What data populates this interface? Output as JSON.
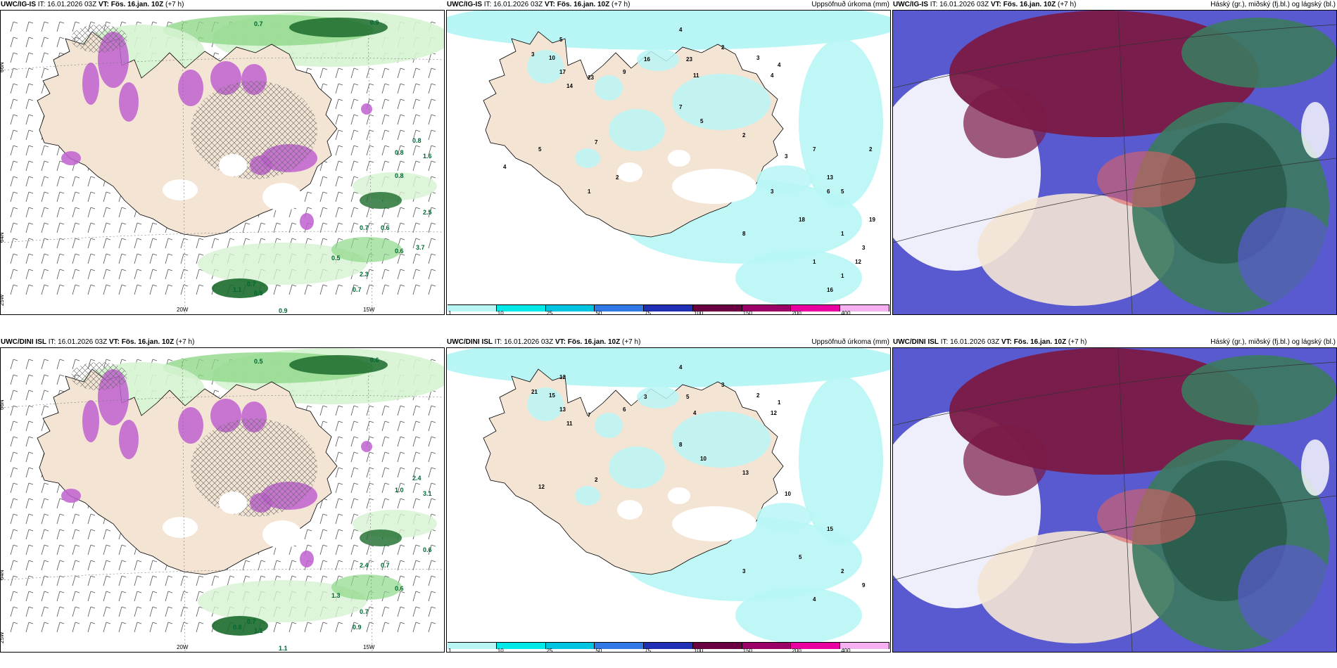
{
  "panels": [
    {
      "model": "UWC/IG-IS",
      "it_label": "IT:",
      "it": "16.01.2026 03Z",
      "vt_label": "VT:",
      "vt": "Fös. 16.jan. 10Z",
      "lead": "(+7 h)",
      "right": "",
      "labels": [
        "0.7",
        "0.9",
        "0.8",
        "1.6",
        "0.8",
        "0.7",
        "0.6",
        "0.5",
        "0.7",
        "0.5",
        "0.9",
        "1.1",
        "0.7",
        "0.6",
        "2.3",
        "2.5",
        "3.7",
        "0.8"
      ],
      "axis": [
        "20W",
        "15W",
        "66N",
        "64N",
        "25W"
      ]
    },
    {
      "model": "UWC/IG-IS",
      "it_label": "IT:",
      "it": "16.01.2026 03Z",
      "vt_label": "VT:",
      "vt": "Fös. 16.jan. 10Z",
      "lead": "(+7 h)",
      "right": "Uppsöfnuð úrkoma (mm)",
      "labels": [
        "4",
        "5",
        "3",
        "10",
        "17",
        "14",
        "23",
        "16",
        "9",
        "23",
        "11",
        "3",
        "2",
        "4",
        "4",
        "7",
        "5",
        "2",
        "3",
        "6",
        "18",
        "1",
        "3",
        "8",
        "1",
        "7",
        "5",
        "4",
        "2",
        "1",
        "13",
        "3",
        "19",
        "12",
        "16",
        "2",
        "7",
        "1",
        "5"
      ]
    },
    {
      "model": "UWC/IG-IS",
      "it_label": "IT:",
      "it": "16.01.2026 03Z",
      "vt_label": "VT:",
      "vt": "Fös. 16.jan. 10Z",
      "lead": "(+7 h)",
      "right": "Háský (gr.), miðský (fj.bl.) og lágský (bl.)"
    },
    {
      "model": "UWC/DINI ISL",
      "it_label": "IT:",
      "it": "16.01.2026 03Z",
      "vt_label": "VT:",
      "vt": "Fös. 16.jan. 10Z",
      "lead": "(+7 h)",
      "right": "",
      "labels": [
        "0.5",
        "0.6",
        "2.4",
        "3.1",
        "1.0",
        "2.4",
        "0.7",
        "1.3",
        "0.7",
        "1.1",
        "1.1",
        "0.8",
        "0.9",
        "0.6",
        "0.7",
        "0.6"
      ],
      "axis": [
        "20W",
        "15W",
        "66N",
        "64N",
        "25W"
      ]
    },
    {
      "model": "UWC/DINI ISL",
      "it_label": "IT:",
      "it": "16.01.2026 03Z",
      "vt_label": "VT:",
      "vt": "Fös. 16.jan. 10Z",
      "lead": "(+7 h)",
      "right": "Uppsöfnuð úrkoma (mm)",
      "labels": [
        "4",
        "12",
        "21",
        "15",
        "13",
        "11",
        "7",
        "3",
        "6",
        "5",
        "4",
        "2",
        "3",
        "1",
        "12",
        "8",
        "10",
        "13",
        "10",
        "15",
        "5",
        "2",
        "9",
        "3",
        "4",
        "2",
        "12"
      ]
    },
    {
      "model": "UWC/DINI ISL",
      "it_label": "IT:",
      "it": "16.01.2026 03Z",
      "vt_label": "VT:",
      "vt": "Fös. 16.jan. 10Z",
      "lead": "(+7 h)",
      "right": "Háský (gr.), miðský (fj.bl.) og lágský (bl.)"
    }
  ],
  "colorbar": {
    "ticks": [
      "1",
      "10",
      "25",
      "50",
      "75",
      "100",
      "150",
      "200",
      "400"
    ],
    "colors": [
      "#b8f6f6",
      "#00e8e8",
      "#00c4e0",
      "#2f78e6",
      "#2030b4",
      "#6a0042",
      "#9a0066",
      "#e800a0",
      "#f4b0f0"
    ]
  },
  "colors": {
    "land": "#f3e4d4",
    "sea": "#ffffff",
    "precip_light": "#d6f3d2",
    "precip_mid": "#8fd88a",
    "precip_dark": "#1b6b2c",
    "snow": "#c060d0",
    "cyan": "#b8f6f6",
    "high_cloud": "#7a1a45",
    "mid_cloud": "#3b7a5e",
    "low_cloud": "#5a5ad0"
  }
}
